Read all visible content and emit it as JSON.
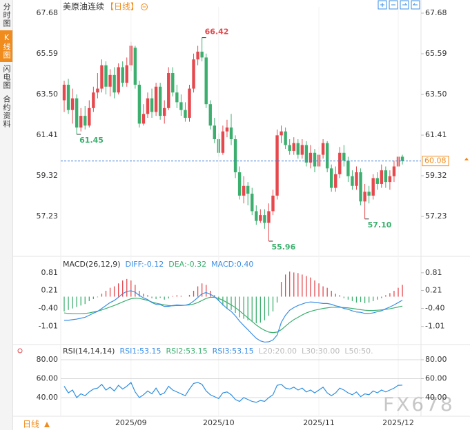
{
  "ui": {
    "tabs": [
      "分时图",
      "K线图",
      "闪电图",
      "合约资料"
    ],
    "active_tab": 1,
    "period": "日线"
  },
  "chart_data": [
    {
      "type": "candlestick",
      "title": "美原油连续",
      "subtitle": "【日线】",
      "watermark": "FX678",
      "categories": [
        null,
        null,
        null,
        null,
        null,
        null,
        null,
        null,
        null,
        null,
        null,
        null,
        null,
        null,
        null,
        null,
        "2025/09",
        null,
        null,
        null,
        null,
        null,
        null,
        null,
        null,
        null,
        null,
        null,
        null,
        null,
        null,
        null,
        null,
        null,
        null,
        null,
        null,
        "2025/10",
        null,
        null,
        null,
        null,
        null,
        null,
        null,
        null,
        null,
        null,
        null,
        null,
        null,
        null,
        null,
        null,
        null,
        null,
        null,
        null,
        null,
        null,
        null,
        "2025/11",
        null,
        null,
        null,
        null,
        null,
        null,
        null,
        null,
        null,
        null,
        null,
        null,
        null,
        null,
        null,
        null,
        null,
        null,
        "2025/12",
        null
      ],
      "open": [
        63.2,
        64.0,
        62.7,
        63.3,
        61.8,
        62.4,
        61.9,
        62.8,
        63.6,
        63.8,
        65.0,
        63.9,
        64.5,
        63.6,
        64.9,
        64.1,
        65.0,
        65.9,
        64.0,
        62.0,
        62.5,
        63.3,
        62.6,
        63.9,
        62.4,
        62.8,
        64.6,
        63.6,
        63.1,
        62.7,
        62.3,
        63.8,
        65.3,
        65.7,
        65.4,
        63.0,
        61.9,
        61.2,
        60.5,
        61.6,
        61.8,
        61.2,
        59.5,
        58.3,
        58.8,
        58.4,
        57.5,
        57.0,
        57.3,
        56.9,
        57.5,
        58.3,
        61.4,
        61.6,
        60.9,
        60.6,
        61.0,
        60.4,
        60.9,
        60.0,
        60.5,
        59.8,
        60.4,
        61.0,
        59.7,
        58.7,
        59.4,
        60.5,
        60.1,
        59.3,
        58.8,
        59.5,
        58.0,
        58.5,
        58.3,
        59.2,
        58.9,
        59.6,
        59.0,
        59.3,
        59.8,
        60.3
      ],
      "high": [
        64.2,
        64.3,
        63.8,
        63.5,
        62.8,
        62.9,
        63.2,
        63.9,
        64.6,
        65.3,
        65.2,
        64.8,
        64.9,
        65.1,
        65.2,
        65.4,
        66.2,
        66.0,
        64.2,
        63.0,
        63.6,
        63.8,
        64.1,
        64.1,
        63.2,
        64.9,
        64.9,
        64.0,
        63.5,
        63.1,
        64.0,
        65.6,
        66.0,
        66.42,
        65.6,
        63.2,
        62.3,
        61.5,
        61.9,
        62.2,
        62.5,
        61.4,
        59.8,
        59.3,
        59.0,
        58.7,
        57.8,
        57.6,
        57.6,
        57.9,
        58.6,
        61.7,
        61.9,
        61.8,
        61.2,
        61.3,
        61.2,
        61.2,
        61.1,
        60.9,
        60.7,
        60.8,
        61.2,
        61.1,
        59.9,
        59.8,
        60.8,
        60.9,
        60.3,
        59.6,
        59.8,
        59.7,
        58.9,
        58.8,
        59.4,
        59.5,
        59.9,
        59.8,
        59.6,
        60.1,
        60.6,
        60.4
      ],
      "low": [
        62.6,
        62.5,
        62.0,
        61.45,
        61.6,
        61.7,
        61.8,
        62.6,
        63.3,
        63.6,
        63.5,
        63.4,
        63.3,
        63.5,
        63.9,
        63.9,
        64.7,
        63.8,
        61.8,
        61.9,
        62.3,
        62.3,
        62.4,
        62.2,
        62.0,
        62.7,
        63.4,
        62.8,
        62.4,
        62.1,
        62.1,
        63.6,
        65.0,
        65.2,
        62.8,
        61.7,
        61.0,
        60.3,
        60.4,
        61.3,
        60.9,
        59.2,
        58.1,
        57.9,
        57.8,
        57.3,
        56.8,
        56.9,
        56.6,
        55.96,
        57.3,
        58.1,
        61.0,
        60.7,
        60.4,
        60.4,
        60.2,
        60.2,
        59.8,
        59.7,
        59.5,
        59.6,
        60.2,
        59.5,
        58.5,
        58.5,
        59.2,
        59.8,
        59.0,
        58.6,
        58.6,
        57.8,
        57.1,
        57.9,
        58.1,
        58.6,
        58.7,
        58.7,
        58.6,
        59.0,
        59.6,
        59.9
      ],
      "close": [
        64.0,
        62.7,
        63.3,
        61.8,
        62.4,
        61.9,
        62.8,
        63.6,
        63.8,
        65.0,
        63.9,
        64.5,
        63.6,
        64.9,
        64.1,
        65.0,
        66.0,
        64.0,
        62.0,
        62.5,
        63.3,
        62.6,
        63.9,
        62.4,
        62.8,
        64.6,
        63.6,
        63.1,
        62.7,
        62.3,
        63.8,
        65.3,
        65.7,
        65.4,
        63.0,
        61.9,
        61.2,
        60.5,
        61.6,
        61.8,
        61.2,
        59.5,
        58.3,
        58.8,
        58.4,
        57.5,
        57.0,
        57.3,
        56.9,
        57.5,
        58.3,
        61.4,
        61.6,
        60.9,
        60.6,
        61.0,
        60.4,
        60.9,
        60.0,
        60.5,
        59.8,
        60.4,
        61.0,
        59.7,
        58.7,
        59.4,
        60.5,
        60.1,
        59.3,
        58.8,
        59.5,
        58.0,
        58.5,
        58.3,
        59.2,
        58.9,
        59.6,
        59.0,
        59.3,
        59.8,
        60.3,
        60.08
      ],
      "up_color": "#e5484d",
      "down_color": "#3caf6e",
      "ylim": [
        55.25,
        68.0
      ],
      "yticks": [
        67.68,
        65.59,
        {
          "value": 63.5,
          "label": "63.50"
        },
        61.41,
        59.32,
        57.23
      ],
      "last_price": 60.08,
      "last_price_color": "#f08c1e",
      "annotations": [
        {
          "label": "66.42",
          "value": 66.42,
          "at": "high",
          "color": "#e5484d"
        },
        {
          "label": "61.45",
          "value": 61.45,
          "at": "low",
          "color": "#3caf6e"
        },
        {
          "label": "55.96",
          "value": 55.96,
          "at": "low",
          "color": "#3caf6e"
        },
        {
          "label": "57.10",
          "value": 57.1,
          "at": "low",
          "color": "#3caf6e"
        }
      ]
    },
    {
      "type": "macd",
      "legend": [
        {
          "text": "MACD(26,12,9)",
          "color": "#333333"
        },
        {
          "text": "DIFF:-0.12",
          "color": "#3a8ee6"
        },
        {
          "text": "DEA:-0.32",
          "color": "#3caf6e"
        },
        {
          "text": "MACD:0.40",
          "color": "#3a8ee6"
        }
      ],
      "ylim": [
        -1.6,
        1.25
      ],
      "yticks": [
        0.81,
        0.21,
        {
          "value": -0.4,
          "label": "-0.40"
        },
        -1.01
      ],
      "histogram": [
        -0.5,
        -0.45,
        -0.4,
        -0.35,
        -0.3,
        -0.25,
        -0.15,
        -0.08,
        -0.02,
        0.1,
        0.2,
        0.3,
        0.35,
        0.45,
        0.55,
        0.6,
        0.55,
        0.4,
        0.2,
        0.1,
        0.05,
        -0.05,
        -0.08,
        -0.04,
        -0.1,
        -0.06,
        0.02,
        0.05,
        0.03,
        0.0,
        0.06,
        0.2,
        0.35,
        0.45,
        0.4,
        0.2,
        0.05,
        -0.15,
        -0.3,
        -0.4,
        -0.45,
        -0.55,
        -0.7,
        -0.75,
        -0.8,
        -0.85,
        -0.9,
        -0.88,
        -0.8,
        -0.65,
        -0.5,
        -0.2,
        0.5,
        0.75,
        0.85,
        0.82,
        0.8,
        0.75,
        0.7,
        0.65,
        0.55,
        0.45,
        0.35,
        0.3,
        0.2,
        0.1,
        0.05,
        -0.05,
        -0.1,
        -0.15,
        -0.2,
        -0.18,
        -0.22,
        -0.2,
        -0.15,
        -0.1,
        -0.05,
        0.05,
        0.12,
        0.2,
        0.3,
        0.4
      ],
      "diff": [
        -0.8,
        -0.8,
        -0.78,
        -0.76,
        -0.73,
        -0.7,
        -0.63,
        -0.56,
        -0.5,
        -0.4,
        -0.3,
        -0.2,
        -0.13,
        -0.02,
        0.1,
        0.18,
        0.2,
        0.15,
        0.04,
        -0.04,
        -0.1,
        -0.2,
        -0.26,
        -0.27,
        -0.33,
        -0.33,
        -0.3,
        -0.28,
        -0.29,
        -0.29,
        -0.25,
        -0.15,
        -0.03,
        0.1,
        0.14,
        0.08,
        0.0,
        -0.13,
        -0.27,
        -0.4,
        -0.5,
        -0.65,
        -0.83,
        -0.98,
        -1.12,
        -1.27,
        -1.41,
        -1.5,
        -1.54,
        -1.53,
        -1.47,
        -1.3,
        -0.87,
        -0.63,
        -0.46,
        -0.37,
        -0.3,
        -0.25,
        -0.2,
        -0.18,
        -0.19,
        -0.21,
        -0.23,
        -0.23,
        -0.26,
        -0.31,
        -0.34,
        -0.4,
        -0.43,
        -0.48,
        -0.52,
        -0.53,
        -0.57,
        -0.57,
        -0.55,
        -0.51,
        -0.48,
        -0.41,
        -0.35,
        -0.28,
        -0.2,
        -0.12
      ],
      "dea": [
        -0.55,
        -0.57,
        -0.58,
        -0.58,
        -0.58,
        -0.57,
        -0.55,
        -0.52,
        -0.49,
        -0.45,
        -0.4,
        -0.35,
        -0.3,
        -0.24,
        -0.18,
        -0.12,
        -0.07,
        -0.05,
        -0.06,
        -0.09,
        -0.13,
        -0.18,
        -0.22,
        -0.25,
        -0.28,
        -0.3,
        -0.31,
        -0.3,
        -0.3,
        -0.29,
        -0.28,
        -0.25,
        -0.2,
        -0.13,
        -0.06,
        -0.02,
        -0.02,
        -0.06,
        -0.12,
        -0.2,
        -0.28,
        -0.37,
        -0.48,
        -0.6,
        -0.72,
        -0.84,
        -0.96,
        -1.06,
        -1.14,
        -1.2,
        -1.22,
        -1.2,
        -1.12,
        -1.0,
        -0.88,
        -0.78,
        -0.7,
        -0.62,
        -0.55,
        -0.5,
        -0.46,
        -0.43,
        -0.4,
        -0.38,
        -0.36,
        -0.36,
        -0.36,
        -0.37,
        -0.38,
        -0.4,
        -0.42,
        -0.44,
        -0.46,
        -0.47,
        -0.47,
        -0.46,
        -0.45,
        -0.43,
        -0.41,
        -0.38,
        -0.35,
        -0.32
      ],
      "up_color": "#e5484d",
      "down_color": "#3caf6e",
      "diff_color": "#3a8ee6",
      "dea_color": "#3caf6e"
    },
    {
      "type": "line",
      "legend": [
        {
          "text": "RSI(14,14,14)",
          "color": "#333333"
        },
        {
          "text": "RSI1:53.15",
          "color": "#3a8ee6"
        },
        {
          "text": "RSI2:53.15",
          "color": "#3caf6e"
        },
        {
          "text": "RSI3:53.15",
          "color": "#3a8ee6"
        },
        {
          "text": "L20:20.00",
          "color": "#bbbbbb"
        },
        {
          "text": "L30:30.00",
          "color": "#bbbbbb"
        },
        {
          "text": "L50:50.",
          "color": "#bbbbbb"
        }
      ],
      "ylim": [
        21.8,
        90.2
      ],
      "yticks": [
        {
          "value": 80,
          "label": "80.00"
        },
        {
          "value": 60,
          "label": "60.00"
        },
        {
          "value": 40,
          "label": "40.00"
        }
      ],
      "grid": true,
      "color": "#2e8fe0",
      "values": [
        52,
        45,
        48,
        40,
        44,
        42,
        46,
        49,
        50,
        54,
        48,
        51,
        47,
        53,
        49,
        52,
        56,
        46,
        40,
        43,
        47,
        44,
        50,
        43,
        45,
        52,
        48,
        46,
        44,
        42,
        49,
        55,
        56,
        54,
        47,
        43,
        41,
        39,
        45,
        46,
        43,
        38,
        36,
        40,
        38,
        36,
        35,
        37,
        36,
        40,
        43,
        53,
        54,
        50,
        49,
        51,
        48,
        50,
        46,
        48,
        45,
        48,
        51,
        45,
        42,
        45,
        50,
        48,
        45,
        43,
        46,
        41,
        44,
        43,
        47,
        45,
        48,
        46,
        48,
        50,
        53,
        53.15
      ]
    }
  ]
}
